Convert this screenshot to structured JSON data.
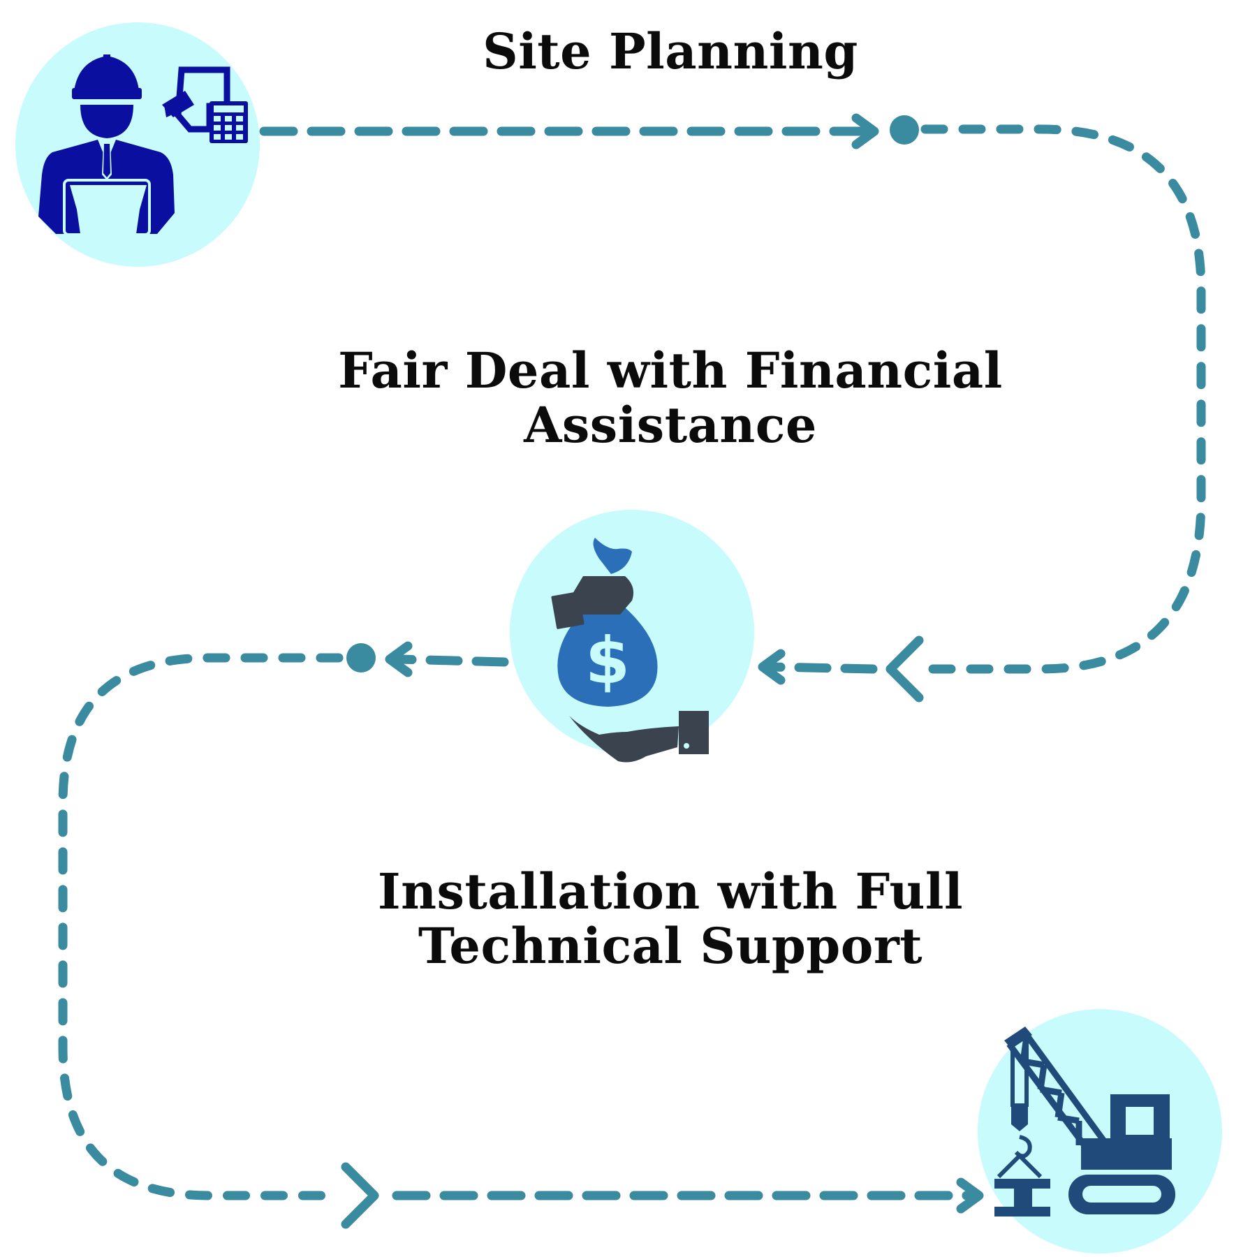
{
  "steps": [
    {
      "title_line1": "Site Planning",
      "title_line2": "",
      "icon": "engineer-with-blueprint-and-calculator-icon"
    },
    {
      "title_line1": "Fair Deal with Financial",
      "title_line2": "Assistance",
      "icon": "hand-receiving-money-bag-icon"
    },
    {
      "title_line1": "Installation with Full",
      "title_line2": "Technical Support",
      "icon": "crawler-crane-icon"
    }
  ],
  "colors": {
    "path": "#3a8aa0",
    "circle_fill": "#c8fbfc",
    "engineer": "#0a0fa0",
    "money_bag": "#2a6fb8",
    "hand": "#3a434e",
    "crane": "#1f4a7a",
    "text": "#0b0b0b"
  }
}
